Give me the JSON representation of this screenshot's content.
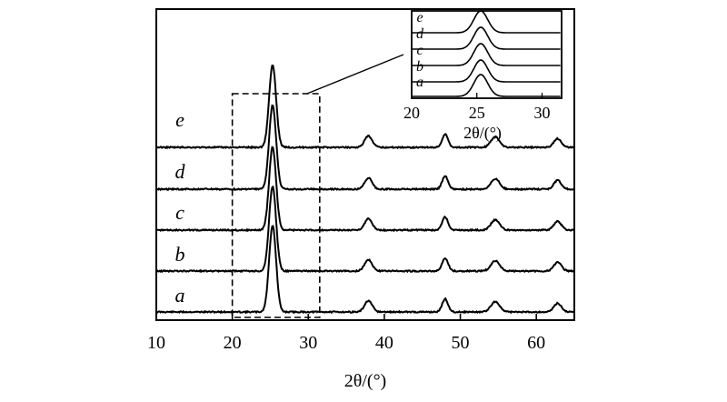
{
  "chart_data": [
    {
      "type": "line",
      "xlabel": "2θ/(°)",
      "ylabel": "",
      "xlim": [
        10,
        65
      ],
      "xticks": [
        10,
        20,
        30,
        40,
        50,
        60
      ],
      "y_ticks_labeled": false,
      "grid": false,
      "stacked": true,
      "peaks_2theta": [
        25.3,
        37.9,
        48.0,
        54.6,
        62.8
      ],
      "peak_heights": [
        1.0,
        0.13,
        0.15,
        0.12,
        0.1
      ],
      "series": [
        {
          "name": "a",
          "peak_scale": 1.0
        },
        {
          "name": "b",
          "peak_scale": 0.98
        },
        {
          "name": "c",
          "peak_scale": 0.96
        },
        {
          "name": "d",
          "peak_scale": 0.97
        },
        {
          "name": "e",
          "peak_scale": 0.95
        }
      ],
      "highlight_box_x": [
        20,
        31.5
      ]
    },
    {
      "type": "line",
      "role": "inset",
      "xlabel": "2θ/(°)",
      "xlim": [
        20,
        31.5
      ],
      "xticks": [
        20,
        25,
        30
      ],
      "series": [
        {
          "name": "e"
        },
        {
          "name": "d"
        },
        {
          "name": "c"
        },
        {
          "name": "b"
        },
        {
          "name": "a"
        }
      ]
    }
  ]
}
